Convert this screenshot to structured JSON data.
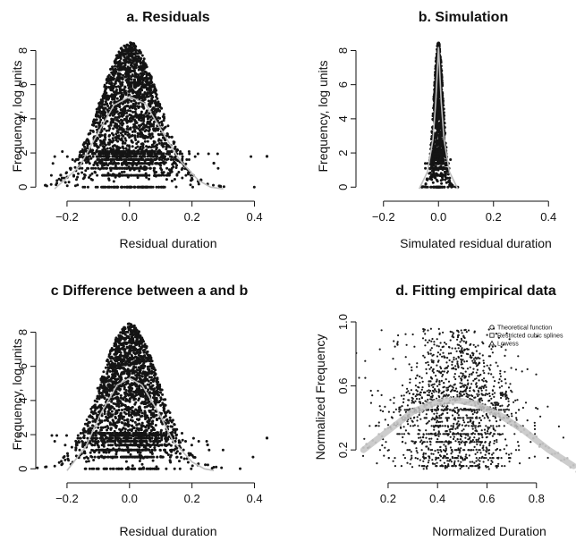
{
  "chart_data": [
    {
      "type": "scatter",
      "title": "a. Residuals",
      "xlabel": "Residual duration",
      "ylabel": "Frequency, log units",
      "xlim": [
        -0.3,
        0.45
      ],
      "ylim": [
        -0.3,
        8.6
      ],
      "xticks": [
        -0.2,
        0.0,
        0.2,
        0.4
      ],
      "xtick_labels": [
        "−0.2",
        "0.0",
        "0.2",
        "0.4"
      ],
      "yticks": [
        0,
        2,
        4,
        6,
        8
      ],
      "ytick_labels": [
        "0",
        "2",
        "4",
        "6",
        "8"
      ],
      "cloud": {
        "center": 0.0,
        "spread": 0.065,
        "ymax": 8.5
      },
      "outliers": [
        {
          "x": 0.27,
          "y": 1.4
        },
        {
          "x": 0.44,
          "y": 1.8
        },
        {
          "x": -0.22,
          "y": 0.7
        }
      ],
      "curve": {
        "x": [
          -0.24,
          -0.16,
          -0.1,
          -0.05,
          0.0,
          0.05,
          0.1,
          0.16,
          0.22,
          0.26,
          0.3
        ],
        "y": [
          -0.1,
          1.2,
          3.2,
          4.8,
          5.3,
          4.9,
          3.4,
          1.6,
          0.4,
          0.0,
          -0.1
        ]
      }
    },
    {
      "type": "scatter",
      "title": "b. Simulation",
      "xlabel": "Simulated residual duration",
      "ylabel": "Frequency, log units",
      "xlim": [
        -0.3,
        0.5
      ],
      "ylim": [
        -0.3,
        8.6
      ],
      "xticks": [
        -0.2,
        0.0,
        0.2,
        0.4
      ],
      "xtick_labels": [
        "−0.2",
        "0.0",
        "0.2",
        "0.4"
      ],
      "yticks": [
        0,
        2,
        4,
        6,
        8
      ],
      "ytick_labels": [
        "0",
        "2",
        "4",
        "6",
        "8"
      ],
      "cloud": {
        "center": 0.0,
        "spread": 0.012,
        "ymax": 8.5
      },
      "outliers": [
        {
          "x": 0.07,
          "y": 0.0
        },
        {
          "x": -0.06,
          "y": 0.0
        }
      ],
      "curve": {
        "x": [
          -0.07,
          -0.04,
          -0.02,
          -0.01,
          0.0,
          0.01,
          0.02,
          0.04,
          0.07
        ],
        "y": [
          -0.1,
          0.9,
          2.8,
          5.0,
          8.2,
          5.0,
          2.8,
          0.9,
          -0.1
        ]
      }
    },
    {
      "type": "scatter",
      "title": "c  Difference between a and b",
      "xlabel": "Residual duration",
      "ylabel": "Frequency, log units",
      "xlim": [
        -0.3,
        0.45
      ],
      "ylim": [
        -0.3,
        8.6
      ],
      "xticks": [
        -0.2,
        0.0,
        0.2,
        0.4
      ],
      "xtick_labels": [
        "−0.2",
        "0.0",
        "0.2",
        "0.4"
      ],
      "yticks": [
        0,
        2,
        4,
        6,
        8
      ],
      "ytick_labels": [
        "0",
        "2",
        "4",
        "6",
        "8"
      ],
      "cloud": {
        "center": 0.0,
        "spread": 0.065,
        "ymax": 8.5
      },
      "outliers": [
        {
          "x": 0.25,
          "y": 1.4
        },
        {
          "x": 0.44,
          "y": 1.8
        }
      ],
      "curve": {
        "x": [
          -0.2,
          -0.14,
          -0.09,
          -0.04,
          0.0,
          0.04,
          0.09,
          0.14,
          0.2,
          0.24,
          0.27
        ],
        "y": [
          -0.1,
          1.3,
          3.3,
          4.9,
          5.3,
          4.9,
          3.4,
          1.6,
          0.4,
          0.0,
          -0.1
        ]
      }
    },
    {
      "type": "scatter",
      "title": "d. Fitting empirical data",
      "xlabel": "Normalized Duration",
      "ylabel": "Normalized Frequency",
      "xlim": [
        0.07,
        0.96
      ],
      "ylim": [
        0.05,
        1.0
      ],
      "xticks": [
        0.2,
        0.4,
        0.6,
        0.8
      ],
      "xtick_labels": [
        "0.2",
        "0.4",
        "0.6",
        "0.8"
      ],
      "yticks": [
        0.2,
        0.6,
        1.0
      ],
      "ytick_labels": [
        "0.2",
        "0.6",
        "1.0"
      ],
      "cloud": {
        "center": 0.48,
        "spread": 0.13
      },
      "curve": {
        "x": [
          0.1,
          0.2,
          0.3,
          0.4,
          0.48,
          0.55,
          0.65,
          0.75,
          0.85,
          0.95
        ],
        "y": [
          0.2,
          0.32,
          0.44,
          0.5,
          0.51,
          0.49,
          0.42,
          0.32,
          0.2,
          0.1
        ]
      },
      "legend": {
        "placement": "top-right",
        "entries": [
          {
            "label": "Theoretical function",
            "marker": "circle"
          },
          {
            "label": "Restricted cubic splines",
            "marker": "square"
          },
          {
            "label": "Lowess",
            "marker": "triangle"
          }
        ]
      }
    }
  ]
}
